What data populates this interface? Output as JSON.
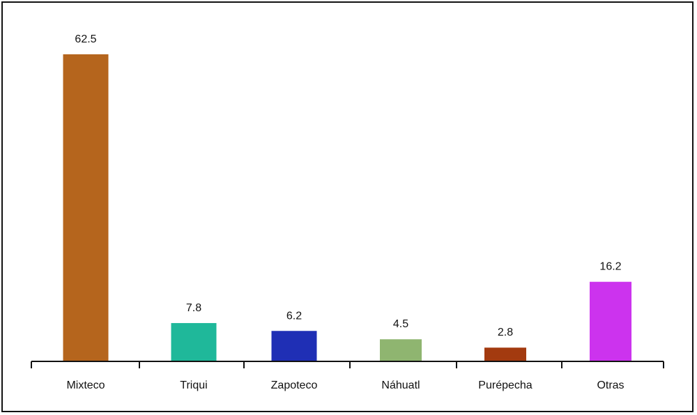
{
  "chart_data": {
    "type": "bar",
    "title": "",
    "xlabel": "",
    "ylabel": "",
    "ylim": [
      0,
      70
    ],
    "grid": false,
    "legend": "none",
    "categories": [
      "Mixteco",
      "Triqui",
      "Zapoteco",
      "Náhuatl",
      "Purépecha",
      "Otras"
    ],
    "values": [
      62.5,
      7.8,
      6.2,
      4.5,
      2.8,
      16.2
    ],
    "value_labels": [
      "62.5",
      "7.8",
      "6.2",
      "4.5",
      "2.8",
      "16.2"
    ],
    "colors": [
      "#b5651d",
      "#1fb89a",
      "#1f2fb5",
      "#8fb570",
      "#a33a0f",
      "#cc33ee"
    ]
  }
}
